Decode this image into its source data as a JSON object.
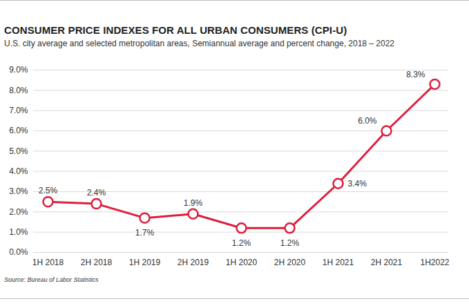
{
  "chart_data": {
    "type": "line",
    "title": "CONSUMER PRICE INDEXES FOR ALL URBAN CONSUMERS (CPI-U)",
    "subtitle": "U.S. city average and selected metropolitan areas, Semiannual average and percent change, 2018 – 2022",
    "caption": "Source: Bureau of Labor Statistics",
    "categories": [
      "1H 2018",
      "2H 2018",
      "1H 2019",
      "2H 2019",
      "1H 2020",
      "2H 2020",
      "1H 2021",
      "2H 2021",
      "1H2022"
    ],
    "values": [
      2.5,
      2.4,
      1.7,
      1.9,
      1.2,
      1.2,
      3.4,
      6.0,
      8.3
    ],
    "value_labels": [
      "2.5%",
      "2.4%",
      "1.7%",
      "1.9%",
      "1.2%",
      "1.2%",
      "3.4%",
      "6.0%",
      "8.3%"
    ],
    "color": "#dc1f3c",
    "marker": "circle",
    "ylim": [
      0,
      9
    ],
    "yticks": [
      {
        "value": 0,
        "label": "0.0%"
      },
      {
        "value": 1,
        "label": "1.0%"
      },
      {
        "value": 2,
        "label": "2.0%"
      },
      {
        "value": 3,
        "label": "3.0%"
      },
      {
        "value": 4,
        "label": "4.0%"
      },
      {
        "value": 5,
        "label": "5.0%"
      },
      {
        "value": 6,
        "label": "6.0%"
      },
      {
        "value": 7,
        "label": "7.0%"
      },
      {
        "value": 8,
        "label": "8.0%"
      },
      {
        "value": 9,
        "label": "9.0%"
      }
    ],
    "grid": true,
    "data_labels": true
  }
}
